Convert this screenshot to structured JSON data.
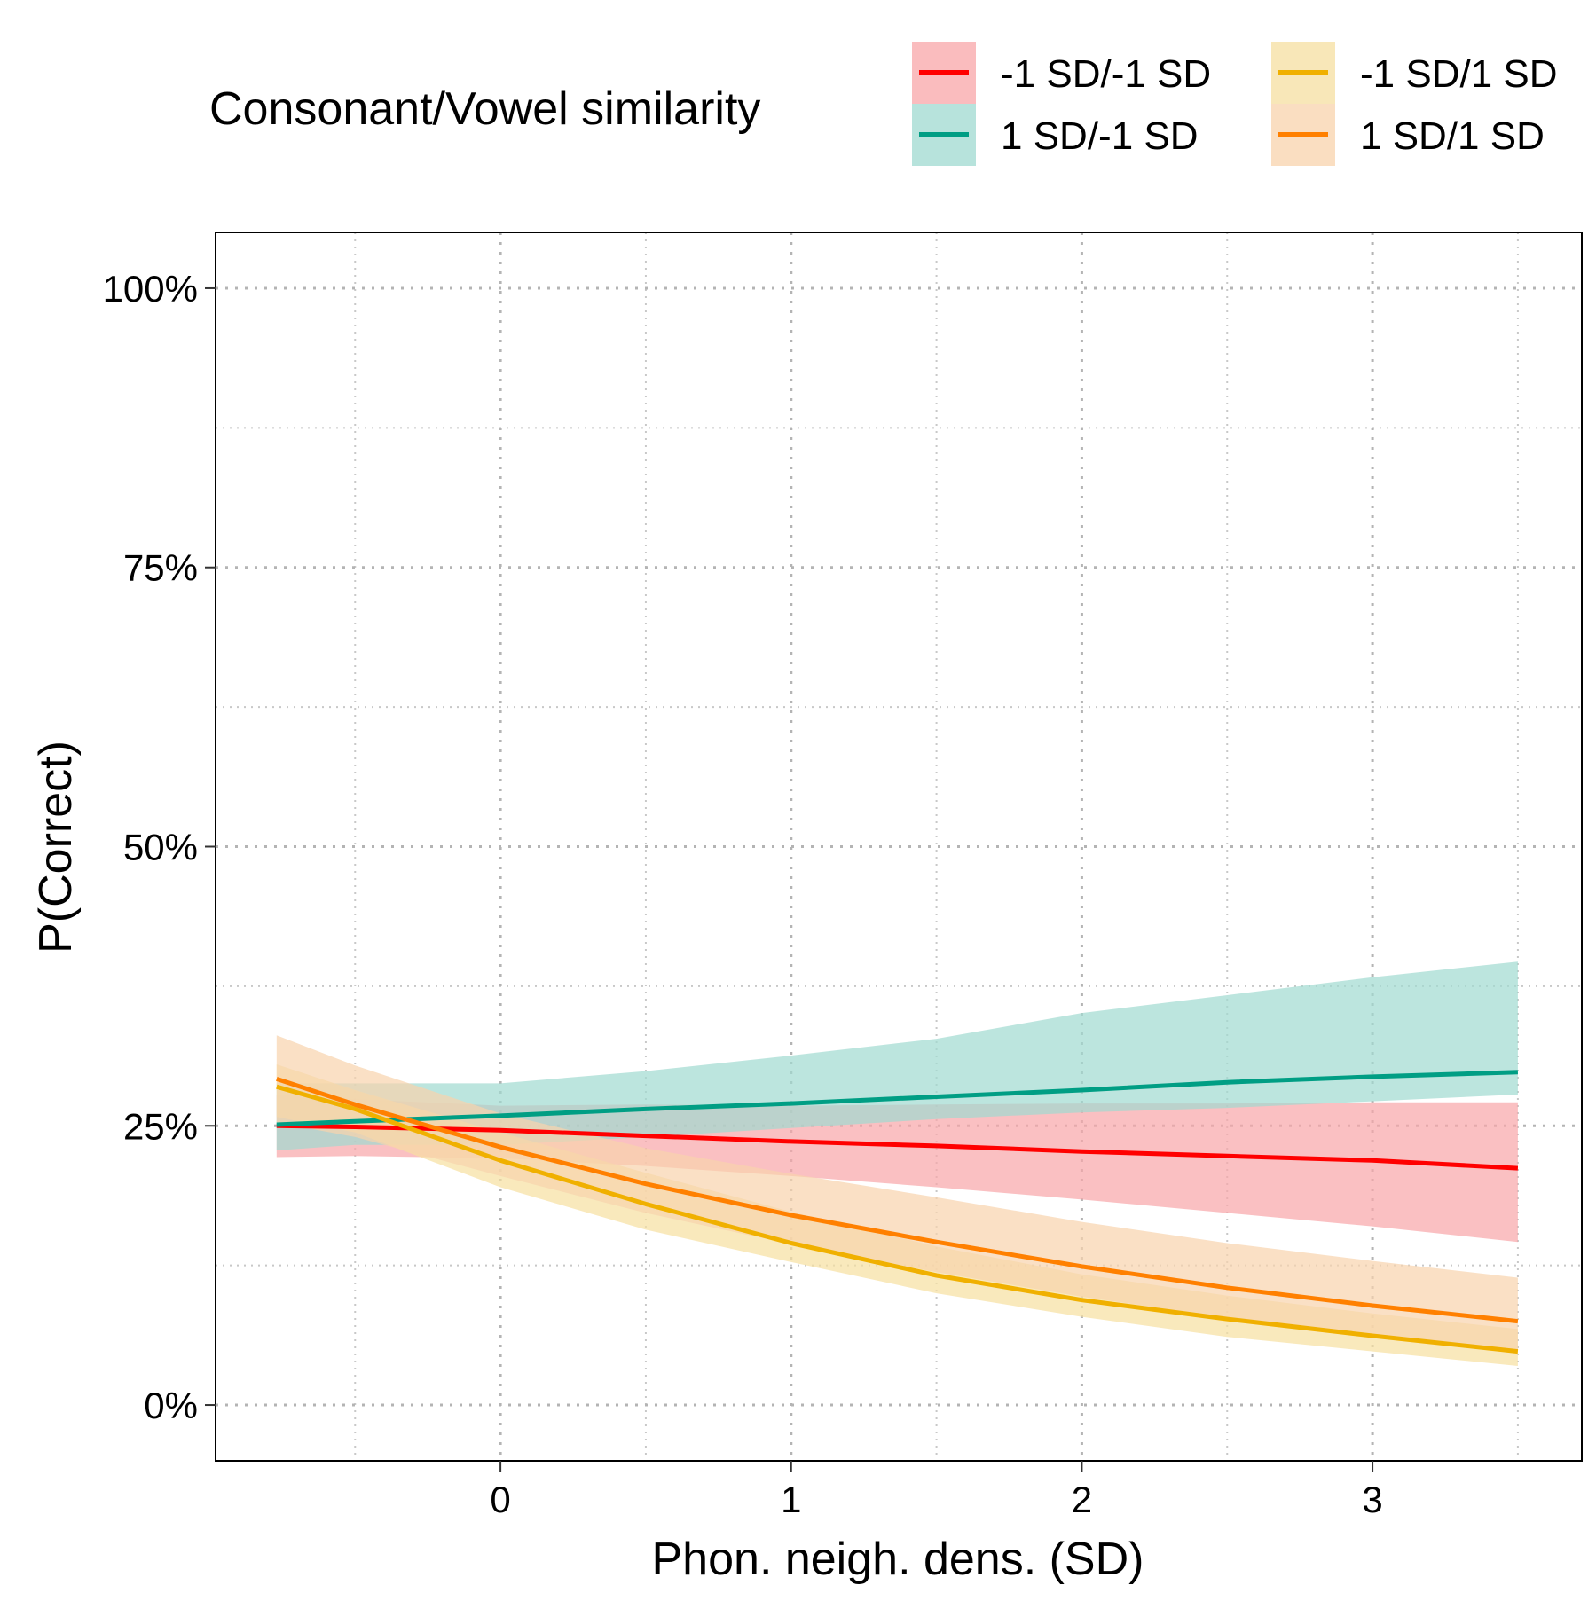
{
  "chart_data": {
    "type": "line",
    "title": "",
    "xlabel": "Phon. neigh. dens. (SD)",
    "ylabel": "P(Correct)",
    "xlim": [
      -0.98,
      3.72
    ],
    "ylim": [
      -0.05,
      1.05
    ],
    "x_ticks": [
      0,
      1,
      2,
      3
    ],
    "x_tick_labels": [
      "0",
      "1",
      "2",
      "3"
    ],
    "y_ticks": [
      0,
      0.25,
      0.5,
      0.75,
      1.0
    ],
    "y_tick_labels": [
      "0%",
      "25%",
      "50%",
      "75%",
      "100%"
    ],
    "grid": "dotted major and minor",
    "legend": {
      "title": "Consonant/Vowel similarity",
      "position": "top",
      "columns": 2
    },
    "x": [
      -0.77,
      -0.5,
      0,
      0.5,
      1,
      1.5,
      2,
      2.5,
      3,
      3.5
    ],
    "series": [
      {
        "name": "-1 SD/-1 SD",
        "color": "#FF0000",
        "fill": "#F8A5A8",
        "values": [
          0.25,
          0.249,
          0.246,
          0.241,
          0.236,
          0.232,
          0.227,
          0.223,
          0.219,
          0.212
        ],
        "lower": [
          0.222,
          0.223,
          0.221,
          0.214,
          0.205,
          0.195,
          0.184,
          0.172,
          0.16,
          0.146
        ],
        "upper": [
          0.278,
          0.274,
          0.268,
          0.269,
          0.268,
          0.269,
          0.27,
          0.27,
          0.271,
          0.271
        ]
      },
      {
        "name": "1 SD/-1 SD",
        "color": "#009E84",
        "fill": "#9FDAD0",
        "values": [
          0.251,
          0.254,
          0.259,
          0.265,
          0.27,
          0.276,
          0.282,
          0.289,
          0.294,
          0.298
        ],
        "lower": [
          0.228,
          0.233,
          0.233,
          0.24,
          0.248,
          0.256,
          0.262,
          0.266,
          0.272,
          0.278
        ],
        "upper": [
          0.288,
          0.288,
          0.288,
          0.299,
          0.313,
          0.328,
          0.351,
          0.367,
          0.383,
          0.397
        ]
      },
      {
        "name": "-1 SD/1 SD",
        "color": "#F0B000",
        "fill": "#F6DFA0",
        "values": [
          0.285,
          0.265,
          0.219,
          0.18,
          0.145,
          0.116,
          0.094,
          0.077,
          0.062,
          0.048
        ],
        "lower": [
          0.258,
          0.244,
          0.195,
          0.157,
          0.128,
          0.1,
          0.079,
          0.061,
          0.048,
          0.035
        ],
        "upper": [
          0.305,
          0.282,
          0.244,
          0.208,
          0.173,
          0.142,
          0.117,
          0.098,
          0.082,
          0.068
        ]
      },
      {
        "name": "1 SD/1 SD",
        "color": "#FF8000",
        "fill": "#F8D3AC",
        "values": [
          0.292,
          0.269,
          0.231,
          0.198,
          0.17,
          0.146,
          0.124,
          0.105,
          0.089,
          0.075
        ],
        "lower": [
          0.253,
          0.24,
          0.205,
          0.172,
          0.144,
          0.119,
          0.097,
          0.078,
          0.062,
          0.049
        ],
        "upper": [
          0.331,
          0.304,
          0.261,
          0.23,
          0.207,
          0.186,
          0.164,
          0.145,
          0.129,
          0.114
        ]
      }
    ]
  }
}
